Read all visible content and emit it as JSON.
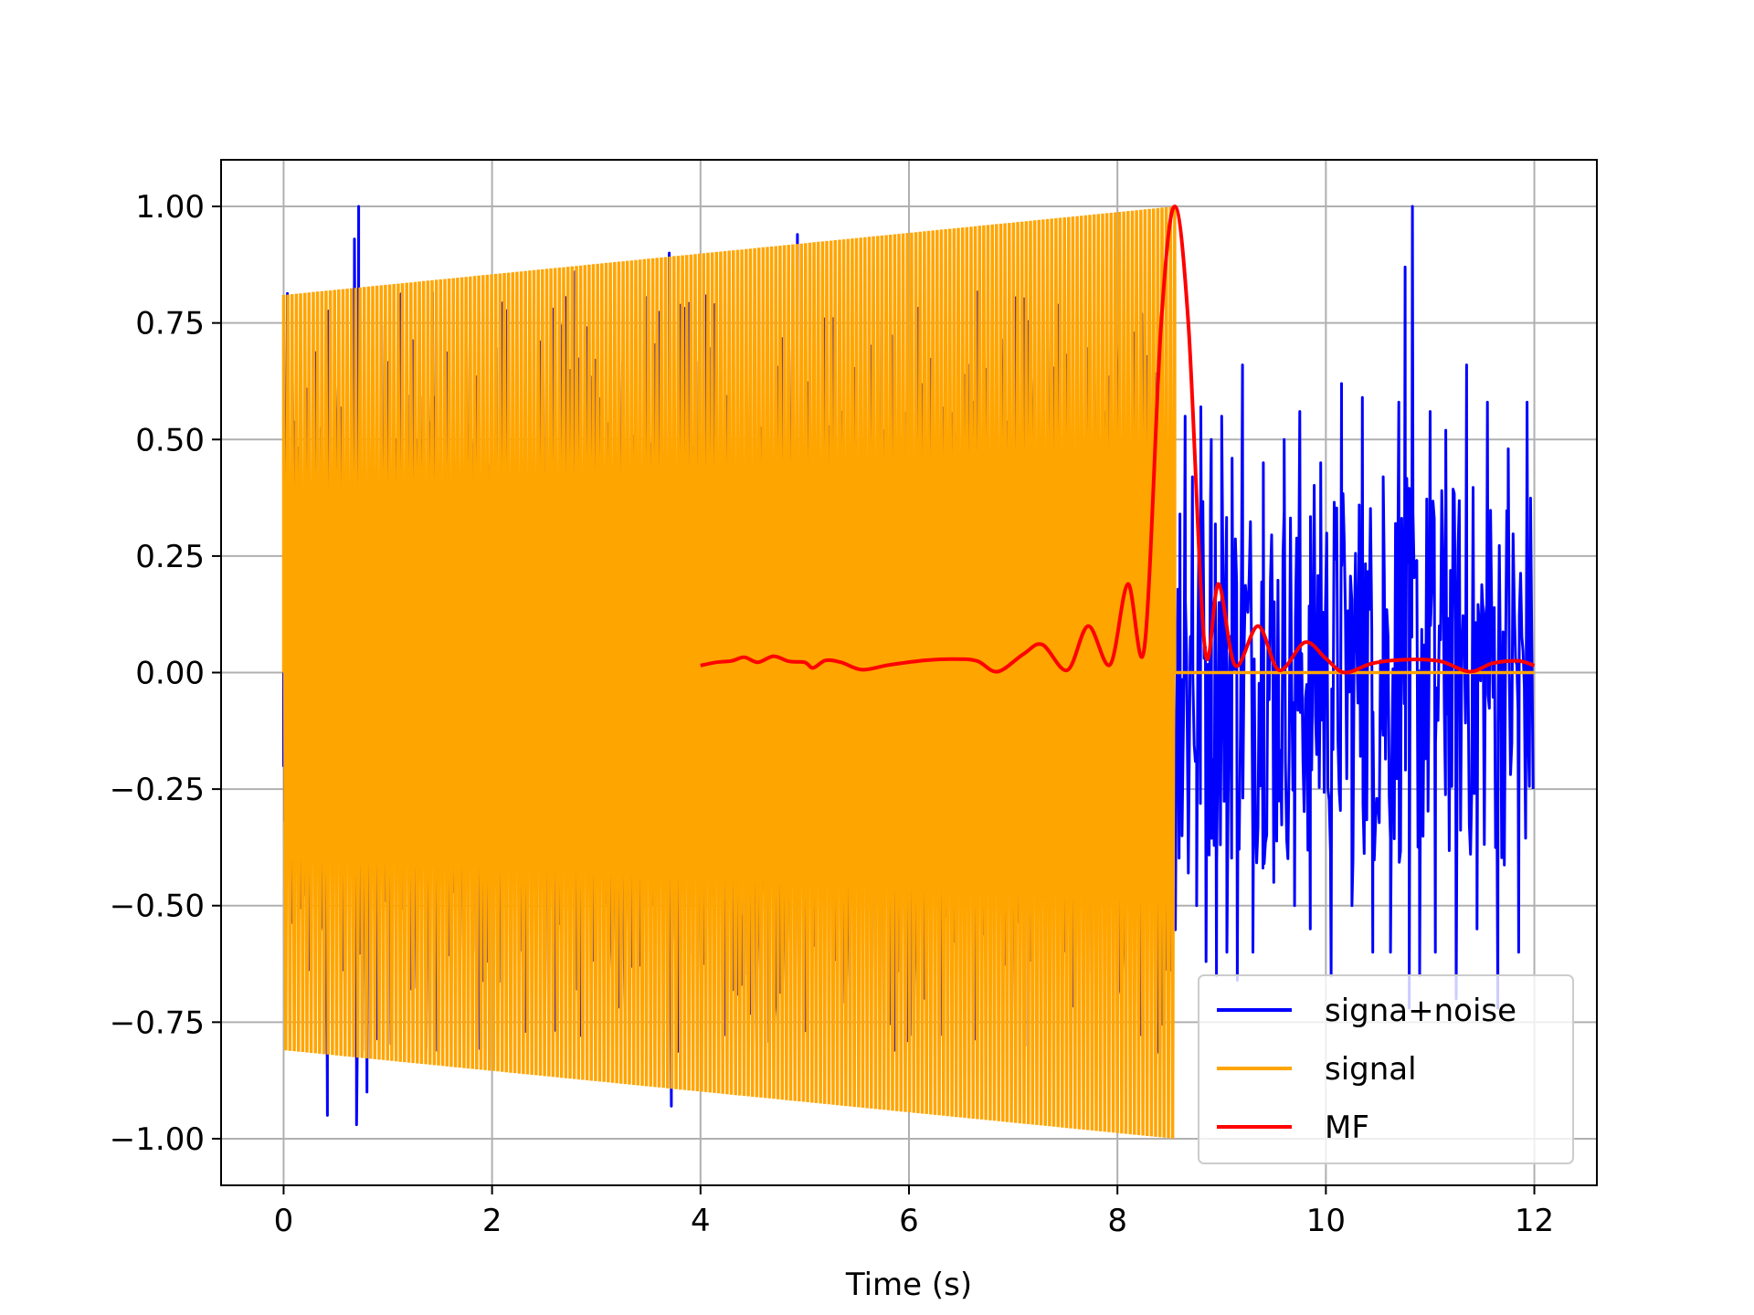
{
  "chart_data": {
    "type": "line",
    "title": "",
    "xlabel": "Time (s)",
    "ylabel": "",
    "xlim": [
      -0.6,
      12.6
    ],
    "ylim": [
      -1.1,
      1.1
    ],
    "xticks": [
      0,
      2,
      4,
      6,
      8,
      10,
      12
    ],
    "xtick_labels": [
      "0",
      "2",
      "4",
      "6",
      "8",
      "10",
      "12"
    ],
    "yticks": [
      1.0,
      0.75,
      0.5,
      0.25,
      0.0,
      -0.25,
      -0.5,
      -0.75,
      -1.0
    ],
    "ytick_labels": [
      "1.00",
      "0.75",
      "0.50",
      "0.25",
      "0.00",
      "−0.25",
      "−0.50",
      "−0.75",
      "−1.00"
    ],
    "grid": true,
    "legend_position": "lower-right",
    "legend": [
      "signa+noise",
      "signal",
      "MF"
    ],
    "series": [
      {
        "name": "signa+noise",
        "color": "#0000ff",
        "description_kind": "noisy",
        "points": [
          [
            0.0,
            0.4
          ],
          [
            0.0,
            -0.2
          ],
          [
            0.42,
            -0.95
          ],
          [
            0.68,
            0.93
          ],
          [
            0.7,
            -0.97
          ],
          [
            0.72,
            1.0
          ],
          [
            0.8,
            -0.9
          ],
          [
            2.8,
            0.86
          ],
          [
            3.7,
            0.9
          ],
          [
            3.72,
            -0.93
          ],
          [
            4.93,
            0.94
          ],
          [
            8.6,
            0.34
          ],
          [
            8.62,
            -0.35
          ],
          [
            8.65,
            0.55
          ],
          [
            8.68,
            -0.43
          ],
          [
            8.72,
            0.42
          ],
          [
            8.76,
            -0.5
          ],
          [
            8.8,
            0.57
          ],
          [
            8.85,
            -0.62
          ],
          [
            8.9,
            0.5
          ],
          [
            8.95,
            -0.65
          ],
          [
            9.0,
            0.55
          ],
          [
            9.05,
            -0.6
          ],
          [
            9.1,
            0.46
          ],
          [
            9.15,
            -0.66
          ],
          [
            9.2,
            0.66
          ],
          [
            9.3,
            -0.6
          ],
          [
            9.4,
            0.45
          ],
          [
            9.5,
            -0.45
          ],
          [
            9.6,
            0.5
          ],
          [
            9.7,
            -0.5
          ],
          [
            9.75,
            0.56
          ],
          [
            9.85,
            -0.55
          ],
          [
            9.95,
            0.45
          ],
          [
            10.05,
            -0.65
          ],
          [
            10.15,
            0.62
          ],
          [
            10.25,
            -0.5
          ],
          [
            10.35,
            0.59
          ],
          [
            10.45,
            -0.6
          ],
          [
            10.55,
            0.42
          ],
          [
            10.62,
            -0.6
          ],
          [
            10.7,
            0.58
          ],
          [
            10.76,
            0.87
          ],
          [
            10.8,
            -0.72
          ],
          [
            10.83,
            1.0
          ],
          [
            10.9,
            -0.65
          ],
          [
            11.0,
            0.56
          ],
          [
            11.05,
            -0.6
          ],
          [
            11.15,
            0.52
          ],
          [
            11.25,
            -0.7
          ],
          [
            11.35,
            0.66
          ],
          [
            11.45,
            -0.55
          ],
          [
            11.55,
            0.58
          ],
          [
            11.65,
            -0.72
          ],
          [
            11.75,
            0.48
          ],
          [
            11.85,
            -0.6
          ],
          [
            11.93,
            0.58
          ],
          [
            12.0,
            -0.55
          ],
          [
            12.0,
            0.58
          ]
        ]
      },
      {
        "name": "signal",
        "color": "#ffa500",
        "envelope_start": [
          0.0,
          0.81
        ],
        "envelope_end": [
          8.55,
          1.0
        ],
        "after_end_value": 0.0,
        "x_end": 12.0
      },
      {
        "name": "MF",
        "color": "#ff0000",
        "points": [
          [
            4.0,
            0.015
          ],
          [
            4.15,
            0.022
          ],
          [
            4.3,
            0.025
          ],
          [
            4.42,
            0.033
          ],
          [
            4.55,
            0.022
          ],
          [
            4.7,
            0.035
          ],
          [
            4.85,
            0.024
          ],
          [
            5.0,
            0.022
          ],
          [
            5.08,
            0.01
          ],
          [
            5.2,
            0.026
          ],
          [
            5.35,
            0.022
          ],
          [
            5.55,
            0.006
          ],
          [
            5.8,
            0.016
          ],
          [
            6.1,
            0.025
          ],
          [
            6.4,
            0.029
          ],
          [
            6.65,
            0.025
          ],
          [
            6.85,
            0.002
          ],
          [
            7.1,
            0.04
          ],
          [
            7.28,
            0.06
          ],
          [
            7.52,
            0.005
          ],
          [
            7.72,
            0.1
          ],
          [
            7.93,
            0.017
          ],
          [
            8.1,
            0.19
          ],
          [
            8.26,
            0.055
          ],
          [
            8.42,
            0.75
          ],
          [
            8.55,
            1.0
          ],
          [
            8.68,
            0.75
          ],
          [
            8.84,
            0.05
          ],
          [
            8.97,
            0.19
          ],
          [
            9.13,
            0.015
          ],
          [
            9.35,
            0.1
          ],
          [
            9.55,
            0.005
          ],
          [
            9.8,
            0.065
          ],
          [
            10.0,
            0.03
          ],
          [
            10.18,
            0.0
          ],
          [
            10.45,
            0.02
          ],
          [
            10.8,
            0.028
          ],
          [
            11.1,
            0.024
          ],
          [
            11.38,
            0.002
          ],
          [
            11.6,
            0.02
          ],
          [
            11.85,
            0.025
          ],
          [
            12.0,
            0.015
          ]
        ]
      }
    ]
  }
}
